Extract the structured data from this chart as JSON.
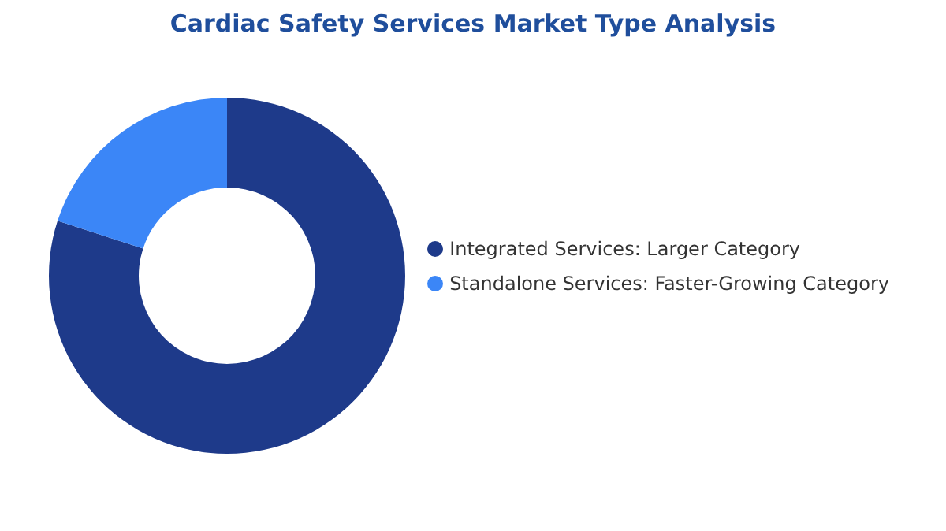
{
  "chart_data": {
    "type": "donut",
    "title": "Cardiac Safety Services Market Type Analysis",
    "categories": [
      "Integrated Services: Larger Category",
      "Standalone Services: Faster-Growing Category"
    ],
    "values": [
      80,
      20
    ],
    "colors": [
      "#1e3a8a",
      "#3b86f7"
    ],
    "legend": "right"
  }
}
